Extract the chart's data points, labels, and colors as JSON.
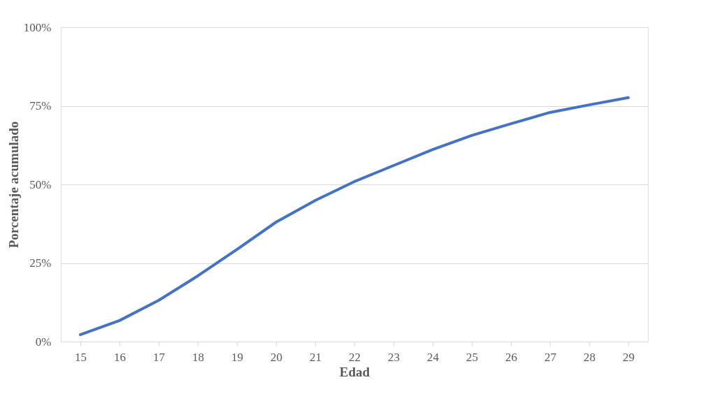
{
  "chart_data": {
    "type": "line",
    "xlabel": "Edad",
    "ylabel": "Porcentaje acumulado",
    "categories": [
      "15",
      "16",
      "17",
      "18",
      "19",
      "20",
      "21",
      "22",
      "23",
      "24",
      "25",
      "26",
      "27",
      "28",
      "29"
    ],
    "series": [
      {
        "color": "#4472c4",
        "values": [
          2.2,
          6.7,
          13.1,
          20.9,
          29.3,
          38.0,
          44.9,
          50.9,
          56.0,
          61.1,
          65.6,
          69.3,
          72.9,
          75.3,
          77.6
        ]
      }
    ],
    "ylim": [
      0,
      100
    ],
    "yticks": [
      {
        "value": 0,
        "label": "0%"
      },
      {
        "value": 25,
        "label": "25%"
      },
      {
        "value": 50,
        "label": "50%"
      },
      {
        "value": 75,
        "label": "75%"
      },
      {
        "value": 100,
        "label": "100%"
      }
    ],
    "grid": "y",
    "marker": "none",
    "line_style": "solid"
  }
}
